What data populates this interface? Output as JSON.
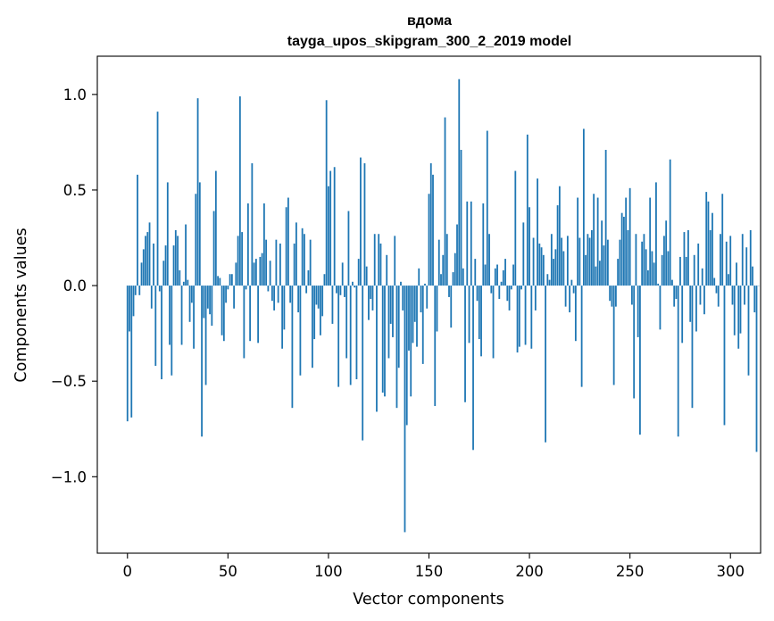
{
  "chart_data": {
    "type": "bar",
    "title": "вдома",
    "subtitle": "tayga_upos_skipgram_300_2_2019 model",
    "xlabel": "Vector components",
    "ylabel": "Components values",
    "xlim": [
      -15,
      315
    ],
    "ylim": [
      -1.4,
      1.2
    ],
    "xticks": [
      0,
      50,
      100,
      150,
      200,
      250,
      300
    ],
    "yticks": [
      1.0,
      0.5,
      0.0,
      -0.5,
      -1.0
    ],
    "ytick_labels": [
      "1.0",
      "0.5",
      "0.0",
      "−0.5",
      "−1.0"
    ],
    "bar_color": "#1f77b4",
    "values": [
      -0.71,
      -0.24,
      -0.69,
      -0.16,
      -0.05,
      0.58,
      -0.05,
      0.12,
      0.19,
      0.26,
      0.28,
      0.33,
      -0.12,
      0.22,
      -0.42,
      0.91,
      -0.03,
      -0.49,
      0.13,
      0.21,
      0.54,
      -0.31,
      -0.47,
      0.21,
      0.29,
      0.26,
      0.08,
      -0.31,
      0.02,
      0.32,
      0.03,
      -0.19,
      -0.09,
      -0.33,
      0.48,
      0.98,
      0.54,
      -0.79,
      -0.17,
      -0.52,
      -0.12,
      -0.15,
      -0.21,
      0.39,
      0.6,
      0.05,
      0.04,
      -0.26,
      -0.29,
      -0.09,
      -0.02,
      0.06,
      0.06,
      -0.12,
      0.12,
      0.26,
      0.99,
      0.28,
      -0.38,
      -0.02,
      0.43,
      -0.29,
      0.64,
      0.12,
      0.14,
      -0.3,
      0.15,
      0.17,
      0.43,
      0.24,
      -0.03,
      0.13,
      -0.08,
      -0.13,
      0.24,
      -0.09,
      0.22,
      -0.33,
      -0.23,
      0.41,
      0.46,
      -0.09,
      -0.64,
      0.22,
      0.33,
      -0.14,
      -0.47,
      0.3,
      0.27,
      -0.04,
      0.08,
      0.24,
      -0.43,
      -0.28,
      -0.1,
      -0.12,
      -0.26,
      -0.16,
      0.06,
      0.97,
      0.52,
      0.6,
      -0.2,
      0.62,
      -0.04,
      -0.53,
      -0.05,
      0.12,
      -0.06,
      -0.38,
      0.39,
      -0.52,
      0.02,
      -0.01,
      -0.49,
      0.14,
      0.67,
      -0.81,
      0.64,
      0.1,
      -0.18,
      -0.07,
      -0.13,
      0.27,
      -0.66,
      0.27,
      0.22,
      -0.56,
      -0.58,
      0.16,
      -0.38,
      -0.2,
      -0.27,
      0.26,
      -0.64,
      -0.43,
      0.02,
      -0.13,
      -1.29,
      -0.73,
      -0.34,
      -0.58,
      -0.3,
      -0.19,
      -0.32,
      0.09,
      -0.14,
      -0.41,
      0.01,
      -0.12,
      0.48,
      0.64,
      0.58,
      -0.63,
      -0.24,
      0.24,
      0.06,
      0.16,
      0.88,
      0.27,
      -0.06,
      -0.22,
      0.07,
      0.17,
      0.32,
      1.08,
      0.71,
      0.09,
      -0.61,
      0.44,
      -0.3,
      0.44,
      -0.86,
      0.14,
      -0.08,
      -0.28,
      -0.37,
      0.43,
      0.11,
      0.81,
      0.27,
      -0.04,
      -0.38,
      0.09,
      0.11,
      -0.07,
      0.02,
      0.08,
      0.14,
      -0.08,
      -0.13,
      -0.02,
      0.11,
      0.6,
      -0.35,
      -0.32,
      -0.02,
      0.33,
      -0.31,
      0.79,
      0.41,
      -0.33,
      0.25,
      -0.13,
      0.56,
      0.22,
      0.2,
      0.16,
      -0.82,
      0.06,
      0.03,
      0.27,
      0.14,
      0.19,
      0.42,
      0.52,
      0.25,
      0.18,
      -0.11,
      0.26,
      -0.14,
      0.03,
      -0.04,
      -0.29,
      0.46,
      0.25,
      -0.53,
      0.82,
      0.16,
      0.27,
      0.25,
      0.29,
      0.48,
      0.1,
      0.46,
      0.13,
      0.34,
      0.21,
      0.71,
      0.24,
      -0.08,
      -0.11,
      -0.52,
      -0.11,
      0.14,
      0.24,
      0.38,
      0.36,
      0.46,
      0.29,
      0.51,
      -0.1,
      -0.59,
      0.27,
      -0.27,
      -0.78,
      0.23,
      0.27,
      0.19,
      0.08,
      0.46,
      0.18,
      0.12,
      0.54,
      0.01,
      -0.23,
      0.16,
      0.26,
      0.34,
      0.18,
      0.66,
      0.03,
      -0.11,
      -0.07,
      -0.79,
      0.15,
      -0.3,
      0.28,
      0.15,
      0.29,
      -0.19,
      -0.64,
      0.16,
      -0.24,
      0.22,
      -0.1,
      0.09,
      -0.15,
      0.49,
      0.44,
      0.29,
      0.38,
      0.04,
      -0.04,
      -0.11,
      0.27,
      0.48,
      -0.73,
      0.23,
      0.06,
      0.26,
      -0.1,
      -0.26,
      0.12,
      -0.33,
      -0.25,
      0.27,
      -0.1,
      0.2,
      -0.47,
      0.29,
      0.1,
      -0.14,
      -0.87,
      0.0
    ]
  }
}
